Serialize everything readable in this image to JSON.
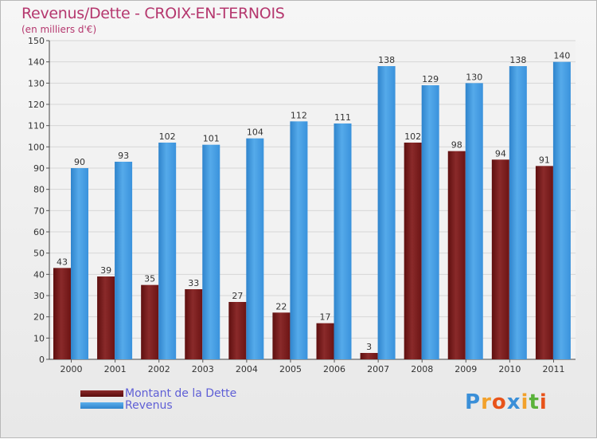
{
  "chart_data": {
    "type": "bar",
    "title": "Revenus/Dette - CROIX-EN-TERNOIS",
    "subtitle": "(en milliers d'€)",
    "categories": [
      "2000",
      "2001",
      "2002",
      "2003",
      "2004",
      "2005",
      "2006",
      "2007",
      "2008",
      "2009",
      "2010",
      "2011"
    ],
    "series": [
      {
        "name": "Montant de la Dette",
        "color": "#7a1a1a",
        "values": [
          43,
          39,
          35,
          33,
          27,
          22,
          17,
          3,
          102,
          98,
          94,
          91
        ]
      },
      {
        "name": "Revenus",
        "color": "#3d97de",
        "values": [
          90,
          93,
          102,
          101,
          104,
          112,
          111,
          138,
          129,
          130,
          138,
          140
        ]
      }
    ],
    "ylim": [
      0,
      150
    ],
    "yticks": [
      0,
      10,
      20,
      30,
      40,
      50,
      60,
      70,
      80,
      90,
      100,
      110,
      120,
      130,
      140,
      150
    ],
    "grid": true,
    "legend_position": "bottom-left"
  },
  "logo": {
    "letters": [
      "P",
      "r",
      "o",
      "x",
      "i",
      "t",
      "i"
    ],
    "colors": [
      "#3a8fd8",
      "#f2a12b",
      "#e8531a",
      "#3a8fd8",
      "#f2a12b",
      "#5ab23a",
      "#e8531a"
    ]
  }
}
